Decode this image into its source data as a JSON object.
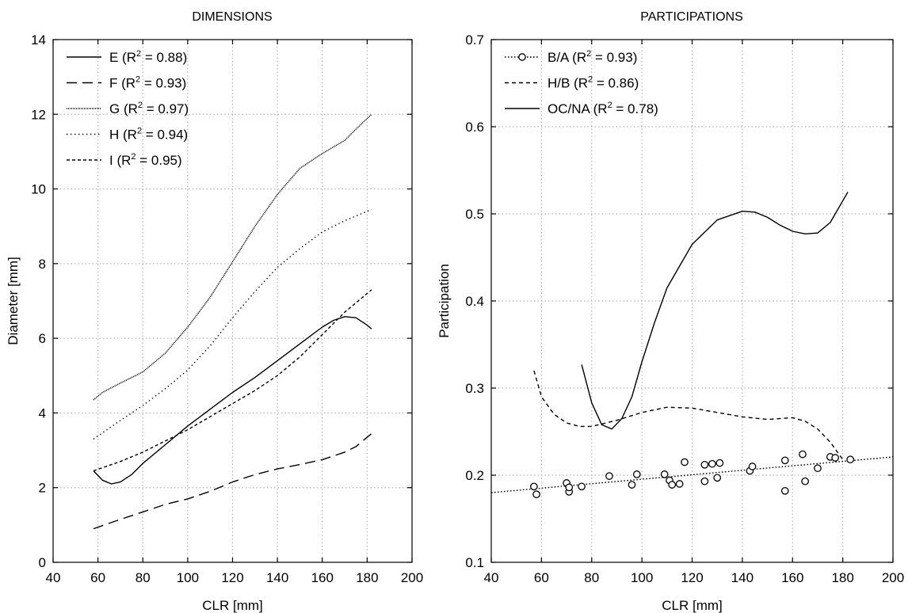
{
  "chart_data": [
    {
      "type": "line",
      "title": "DIMENSIONS",
      "xlabel": "CLR [mm]",
      "ylabel": "Diameter [mm]",
      "xlim": [
        40,
        200
      ],
      "ylim": [
        0,
        14
      ],
      "xticks": [
        40,
        60,
        80,
        100,
        120,
        140,
        160,
        180,
        200
      ],
      "yticks": [
        0,
        2,
        4,
        6,
        8,
        10,
        12,
        14
      ],
      "grid": true,
      "legend_position": "top-left",
      "series": [
        {
          "name": "E",
          "r2": "0.88",
          "style": "solid",
          "x": [
            58,
            62,
            66,
            70,
            75,
            80,
            90,
            100,
            110,
            120,
            130,
            140,
            150,
            160,
            165,
            170,
            175,
            180,
            182
          ],
          "y": [
            2.45,
            2.2,
            2.1,
            2.15,
            2.35,
            2.65,
            3.15,
            3.65,
            4.1,
            4.55,
            4.95,
            5.4,
            5.85,
            6.3,
            6.48,
            6.58,
            6.55,
            6.35,
            6.25
          ]
        },
        {
          "name": "F",
          "r2": "0.93",
          "style": "longdash",
          "x": [
            58,
            70,
            80,
            90,
            100,
            110,
            120,
            130,
            140,
            150,
            160,
            170,
            175,
            182
          ],
          "y": [
            0.9,
            1.15,
            1.35,
            1.55,
            1.7,
            1.9,
            2.15,
            2.35,
            2.5,
            2.62,
            2.75,
            2.95,
            3.1,
            3.45
          ]
        },
        {
          "name": "G",
          "r2": "0.97",
          "style": "fine-dot",
          "x": [
            58,
            62,
            70,
            80,
            90,
            100,
            110,
            120,
            130,
            140,
            150,
            160,
            170,
            175,
            182
          ],
          "y": [
            4.35,
            4.55,
            4.8,
            5.1,
            5.6,
            6.3,
            7.1,
            8.05,
            9.0,
            9.85,
            10.55,
            10.95,
            11.3,
            11.6,
            12.0
          ]
        },
        {
          "name": "H",
          "r2": "0.94",
          "style": "dot",
          "x": [
            58,
            70,
            80,
            90,
            100,
            110,
            120,
            130,
            140,
            150,
            160,
            170,
            182
          ],
          "y": [
            3.3,
            3.8,
            4.2,
            4.65,
            5.15,
            5.8,
            6.55,
            7.25,
            7.9,
            8.4,
            8.85,
            9.15,
            9.45
          ]
        },
        {
          "name": "I",
          "r2": "0.95",
          "style": "shortdash",
          "x": [
            58,
            70,
            80,
            90,
            100,
            110,
            120,
            130,
            140,
            150,
            160,
            170,
            182
          ],
          "y": [
            2.45,
            2.7,
            2.95,
            3.25,
            3.55,
            3.9,
            4.25,
            4.6,
            5.0,
            5.5,
            6.1,
            6.7,
            7.3
          ]
        }
      ]
    },
    {
      "type": "line",
      "title": "PARTICIPATIONS",
      "xlabel": "CLR [mm]",
      "ylabel": "Participation",
      "xlim": [
        40,
        200
      ],
      "ylim": [
        0.1,
        0.7
      ],
      "xticks": [
        40,
        60,
        80,
        100,
        120,
        140,
        160,
        180,
        200
      ],
      "yticks": [
        0.1,
        0.2,
        0.3,
        0.4,
        0.5,
        0.6,
        0.7
      ],
      "grid": true,
      "legend_position": "top-left",
      "series": [
        {
          "name": "B/A",
          "r2": "0.93",
          "style": "dot-with-markers",
          "x": [
            40,
            200
          ],
          "y": [
            0.18,
            0.221
          ],
          "points": [
            [
              57,
              0.187
            ],
            [
              58,
              0.178
            ],
            [
              70,
              0.191
            ],
            [
              71,
              0.181
            ],
            [
              71,
              0.186
            ],
            [
              76,
              0.187
            ],
            [
              87,
              0.199
            ],
            [
              96,
              0.189
            ],
            [
              98,
              0.201
            ],
            [
              109,
              0.201
            ],
            [
              111,
              0.194
            ],
            [
              112,
              0.189
            ],
            [
              115,
              0.19
            ],
            [
              117,
              0.215
            ],
            [
              125,
              0.212
            ],
            [
              125,
              0.193
            ],
            [
              128,
              0.213
            ],
            [
              130,
              0.197
            ],
            [
              131,
              0.214
            ],
            [
              143,
              0.205
            ],
            [
              144,
              0.21
            ],
            [
              157,
              0.217
            ],
            [
              157,
              0.182
            ],
            [
              164,
              0.224
            ],
            [
              165,
              0.193
            ],
            [
              170,
              0.208
            ],
            [
              175,
              0.221
            ],
            [
              177,
              0.22
            ],
            [
              183,
              0.218
            ]
          ]
        },
        {
          "name": "H/B",
          "r2": "0.86",
          "style": "dash",
          "x": [
            57,
            60,
            65,
            70,
            75,
            80,
            90,
            100,
            110,
            120,
            130,
            140,
            150,
            160,
            165,
            170,
            175,
            180
          ],
          "y": [
            0.32,
            0.29,
            0.27,
            0.26,
            0.256,
            0.256,
            0.263,
            0.272,
            0.278,
            0.277,
            0.272,
            0.267,
            0.264,
            0.266,
            0.262,
            0.253,
            0.238,
            0.218
          ]
        },
        {
          "name": "OC/NA",
          "r2": "0.78",
          "style": "solid",
          "x": [
            76,
            80,
            84,
            88,
            92,
            96,
            100,
            105,
            110,
            120,
            130,
            140,
            145,
            150,
            155,
            160,
            165,
            170,
            175,
            182
          ],
          "y": [
            0.327,
            0.283,
            0.258,
            0.253,
            0.265,
            0.29,
            0.33,
            0.375,
            0.415,
            0.465,
            0.493,
            0.503,
            0.502,
            0.496,
            0.487,
            0.48,
            0.477,
            0.478,
            0.49,
            0.525
          ]
        }
      ]
    }
  ]
}
